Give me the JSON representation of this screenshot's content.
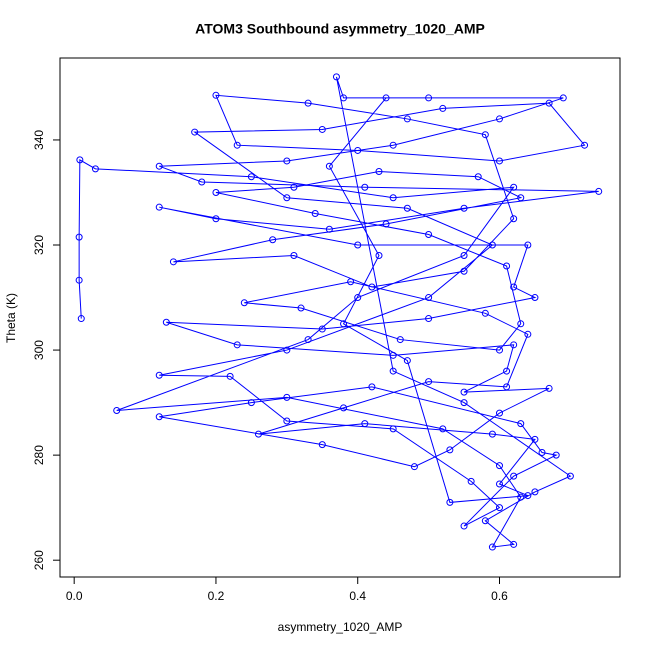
{
  "chart_data": {
    "type": "line",
    "title": "ATOM3 Southbound asymmetry_1020_AMP",
    "xlabel": "asymmetry_1020_AMP",
    "ylabel": "Theta (K)",
    "color": "#0000ff",
    "markers": true,
    "xlim": [
      -0.02,
      0.77
    ],
    "ylim": [
      256.8,
      355.6
    ],
    "xticks": [
      {
        "value": 0,
        "label": "0.0"
      },
      0.2,
      0.4,
      0.6
    ],
    "yticks": [
      260,
      280,
      300,
      320,
      340
    ],
    "x": [
      0.01,
      0.007,
      0.007,
      0.008,
      0.03,
      0.25,
      0.45,
      0.62,
      0.55,
      0.4,
      0.33,
      0.06,
      0.3,
      0.52,
      0.6,
      0.63,
      0.59,
      0.62,
      0.58,
      0.65,
      0.7,
      0.55,
      0.45,
      0.37,
      0.38,
      0.5,
      0.69,
      0.6,
      0.45,
      0.3,
      0.12,
      0.18,
      0.41,
      0.74,
      0.55,
      0.36,
      0.2,
      0.12,
      0.4,
      0.64,
      0.62,
      0.65,
      0.5,
      0.35,
      0.13,
      0.23,
      0.45,
      0.62,
      0.61,
      0.55,
      0.67,
      0.6,
      0.53,
      0.48,
      0.35,
      0.12,
      0.25,
      0.42,
      0.63,
      0.66,
      0.68,
      0.62,
      0.55,
      0.6,
      0.56,
      0.45,
      0.3,
      0.22,
      0.12,
      0.3,
      0.5,
      0.59,
      0.47,
      0.3,
      0.17,
      0.35,
      0.52,
      0.67,
      0.72,
      0.6,
      0.4,
      0.23,
      0.2,
      0.33,
      0.47,
      0.58,
      0.62,
      0.55,
      0.42,
      0.31,
      0.14,
      0.28,
      0.44,
      0.63,
      0.57,
      0.43,
      0.31,
      0.2,
      0.34,
      0.5,
      0.61,
      0.63,
      0.6,
      0.46,
      0.32,
      0.24,
      0.39,
      0.58,
      0.64,
      0.61,
      0.5,
      0.38,
      0.26,
      0.41,
      0.59,
      0.65,
      0.6,
      0.64,
      0.53,
      0.47,
      0.38,
      0.43,
      0.36,
      0.44
    ],
    "values": [
      306,
      313.3,
      321.5,
      336.2,
      334.5,
      333,
      329,
      331,
      318,
      310,
      302,
      288.5,
      291,
      285,
      278,
      272,
      262.5,
      263,
      267.5,
      273,
      276,
      290,
      296,
      352,
      348,
      348,
      348,
      344,
      339,
      336,
      335,
      332,
      331,
      330.2,
      327,
      323,
      325,
      327.2,
      320,
      320,
      312,
      310,
      306,
      304,
      305.3,
      301,
      299,
      301,
      296,
      292,
      292.7,
      288,
      281,
      277.8,
      282,
      287.3,
      290,
      293,
      286,
      280.5,
      280,
      276,
      266.5,
      270,
      275,
      285,
      286.5,
      295,
      295.2,
      300,
      310,
      320,
      327,
      329,
      341.5,
      342,
      346,
      347,
      339,
      336,
      338,
      339,
      348.5,
      347,
      344,
      341,
      325,
      315,
      312,
      318,
      316.8,
      321,
      324,
      329,
      333,
      334,
      331,
      330,
      326,
      322,
      316,
      305,
      300,
      302,
      308,
      309,
      313,
      307,
      303,
      293,
      294,
      289,
      284,
      286,
      284,
      283,
      274.5,
      272.3,
      271,
      298,
      305,
      318,
      335,
      348
    ]
  }
}
